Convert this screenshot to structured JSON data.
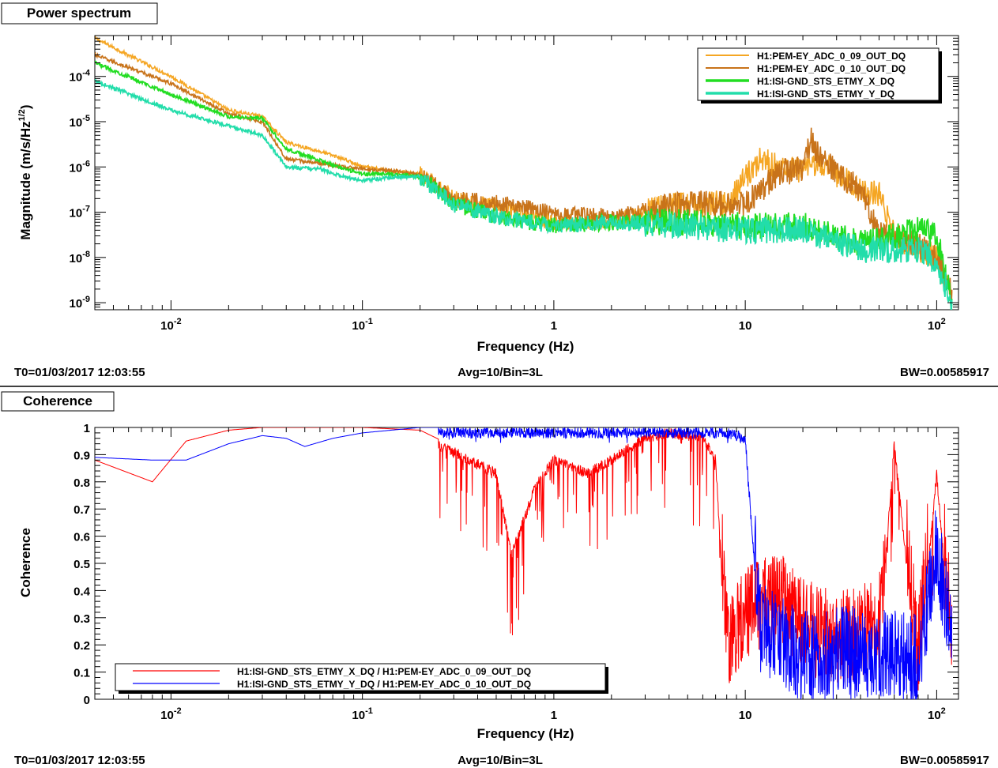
{
  "panels": [
    {
      "title": "Power spectrum",
      "footer": {
        "t0": "T0=01/03/2017 12:03:55",
        "avg": "Avg=10/Bin=3L",
        "bw": "BW=0.00585917"
      }
    },
    {
      "title": "Coherence",
      "footer": {
        "t0": "T0=01/03/2017 12:03:55",
        "avg": "Avg=10/Bin=3L",
        "bw": "BW=0.00585917"
      }
    }
  ],
  "chart_data": [
    {
      "type": "line",
      "title": "Power spectrum",
      "xlabel": "Frequency (Hz)",
      "ylabel": "Magnitude (m/s/Hz^(1/2))",
      "xscale": "log",
      "yscale": "log",
      "xlim": [
        0.004,
        130
      ],
      "ylim": [
        7e-10,
        0.0008
      ],
      "xticks": [
        "10^-2",
        "10^-1",
        "1",
        "10",
        "10^2"
      ],
      "yticks": [
        "10^-9",
        "10^-8",
        "10^-7",
        "10^-6",
        "10^-5",
        "10^-4"
      ],
      "grid": false,
      "legend": "top-right",
      "series": [
        {
          "name": "H1:PEM-EY_ADC_0_09_OUT_DQ",
          "color": "#f5a623",
          "x": [
            0.004,
            0.01,
            0.02,
            0.03,
            0.04,
            0.06,
            0.08,
            0.1,
            0.15,
            0.2,
            0.3,
            0.5,
            1,
            2,
            3.5,
            5,
            8,
            10,
            12,
            15,
            20,
            25,
            30,
            40,
            50,
            60,
            80,
            100,
            120
          ],
          "y": [
            0.0007,
            0.0001,
            1.8e-05,
            1.3e-05,
            3.5e-06,
            2.2e-06,
            1.5e-06,
            1e-06,
            8e-07,
            7e-07,
            2e-07,
            1.3e-07,
            6e-08,
            6e-08,
            1.2e-07,
            1.5e-07,
            1.5e-07,
            6e-07,
            1.5e-06,
            1e-06,
            8e-07,
            1.2e-06,
            7e-07,
            3e-07,
            2.5e-07,
            3e-08,
            1.5e-08,
            1e-08,
            1.3e-09
          ]
        },
        {
          "name": "H1:PEM-EY_ADC_0_10_OUT_DQ",
          "color": "#c8731a",
          "x": [
            0.004,
            0.01,
            0.02,
            0.03,
            0.04,
            0.06,
            0.08,
            0.1,
            0.15,
            0.2,
            0.3,
            0.5,
            1,
            2,
            3.5,
            5,
            8,
            10,
            15,
            20,
            22,
            25,
            30,
            40,
            50,
            60,
            80,
            100,
            120
          ],
          "y": [
            0.0003,
            7e-05,
            1.5e-05,
            1e-05,
            1.5e-06,
            1.2e-06,
            1e-06,
            9e-07,
            8e-07,
            7e-07,
            2e-07,
            1.6e-07,
            1e-07,
            8e-08,
            1.2e-07,
            1.5e-07,
            1.5e-07,
            1.5e-07,
            7e-07,
            1e-06,
            4e-06,
            1.5e-06,
            8e-07,
            3e-07,
            4e-08,
            3e-08,
            2e-08,
            1e-08,
            1.5e-09
          ]
        },
        {
          "name": "H1:ISI-GND_STS_ETMY_X_DQ",
          "color": "#22dd22",
          "x": [
            0.004,
            0.01,
            0.02,
            0.03,
            0.04,
            0.06,
            0.08,
            0.1,
            0.15,
            0.2,
            0.3,
            0.5,
            1,
            2,
            5,
            10,
            20,
            40,
            60,
            80,
            100,
            120
          ],
          "y": [
            0.0002,
            4e-05,
            1.3e-05,
            1.2e-05,
            2.5e-06,
            1.4e-06,
            9e-07,
            7e-07,
            7e-07,
            6e-07,
            1.5e-07,
            8e-08,
            5e-08,
            6e-08,
            6e-08,
            5e-08,
            5e-08,
            2e-08,
            3e-08,
            4e-08,
            3e-08,
            1e-09
          ]
        },
        {
          "name": "H1:ISI-GND_STS_ETMY_Y_DQ",
          "color": "#22ddaa",
          "x": [
            0.004,
            0.01,
            0.02,
            0.03,
            0.04,
            0.06,
            0.08,
            0.1,
            0.15,
            0.2,
            0.3,
            0.5,
            1,
            2,
            5,
            10,
            20,
            40,
            60,
            80,
            100,
            120
          ],
          "y": [
            8e-05,
            1.8e-05,
            8e-06,
            5e-06,
            1e-06,
            9e-07,
            6e-07,
            5e-07,
            6e-07,
            6e-07,
            1.5e-07,
            8e-08,
            5e-08,
            6e-08,
            5e-08,
            4e-08,
            4e-08,
            1.5e-08,
            1.5e-08,
            1.5e-08,
            8e-09,
            1e-09
          ]
        }
      ]
    },
    {
      "type": "line",
      "title": "Coherence",
      "xlabel": "Frequency (Hz)",
      "ylabel": "Coherence",
      "xscale": "log",
      "xlim": [
        0.004,
        130
      ],
      "ylim": [
        0,
        1
      ],
      "xticks": [
        "10^-2",
        "10^-1",
        "1",
        "10",
        "10^2"
      ],
      "yticks": [
        "0",
        "0.1",
        "0.2",
        "0.3",
        "0.4",
        "0.5",
        "0.6",
        "0.7",
        "0.8",
        "0.9",
        "1"
      ],
      "grid": false,
      "legend": "bottom-left",
      "series": [
        {
          "name": "H1:ISI-GND_STS_ETMY_X_DQ / H1:PEM-EY_ADC_0_09_OUT_DQ",
          "color": "#ff0000",
          "x": [
            0.004,
            0.008,
            0.012,
            0.02,
            0.03,
            0.05,
            0.1,
            0.2,
            0.3,
            0.5,
            0.6,
            0.8,
            1,
            1.5,
            2,
            3,
            4,
            6,
            7,
            8,
            10,
            15,
            20,
            30,
            50,
            60,
            80,
            100,
            120
          ],
          "y": [
            0.88,
            0.8,
            0.95,
            0.99,
            1,
            1,
            1,
            0.99,
            0.93,
            0.85,
            0.55,
            0.8,
            0.9,
            0.85,
            0.9,
            0.98,
            1,
            0.98,
            0.9,
            0.15,
            0.25,
            0.3,
            0.2,
            0.15,
            0.2,
            0.96,
            0.1,
            0.85,
            0.15
          ]
        },
        {
          "name": "H1:ISI-GND_STS_ETMY_Y_DQ / H1:PEM-EY_ADC_0_10_OUT_DQ",
          "color": "#0000ff",
          "x": [
            0.004,
            0.008,
            0.012,
            0.02,
            0.03,
            0.04,
            0.05,
            0.07,
            0.1,
            0.2,
            0.5,
            1,
            2,
            5,
            8,
            10,
            12,
            15,
            20,
            30,
            50,
            80,
            100,
            120
          ],
          "y": [
            0.89,
            0.88,
            0.88,
            0.94,
            0.97,
            0.96,
            0.93,
            0.96,
            0.98,
            1,
            1,
            1,
            1,
            1,
            1,
            0.98,
            0.2,
            0.15,
            0.08,
            0.1,
            0.1,
            0.08,
            0.5,
            0.15
          ]
        }
      ]
    }
  ]
}
